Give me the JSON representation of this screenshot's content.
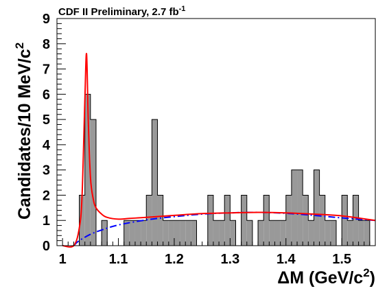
{
  "chart_data": {
    "type": "histogram",
    "title": "CDF II Preliminary, 2.7 fb",
    "title_superscript": "-1",
    "xlabel": "ΔM  (GeV/c",
    "xlabel_superscript": "2",
    "xlabel_suffix": ")",
    "ylabel": "Candidates/10 MeV/c",
    "ylabel_superscript": "2",
    "xlim": [
      0.99,
      1.56
    ],
    "ylim": [
      0,
      9
    ],
    "x_ticks": [
      "1",
      "1.1",
      "1.2",
      "1.3",
      "1.4",
      "1.5"
    ],
    "x_tick_values": [
      1.0,
      1.1,
      1.2,
      1.3,
      1.4,
      1.5
    ],
    "y_ticks": [
      "0",
      "1",
      "2",
      "3",
      "4",
      "5",
      "6",
      "7",
      "8",
      "9"
    ],
    "y_tick_values": [
      0,
      1,
      2,
      3,
      4,
      5,
      6,
      7,
      8,
      9
    ],
    "bin_width": 0.01,
    "bins_start": 1.02,
    "bin_counts": [
      0,
      2,
      6,
      5,
      0,
      1,
      0,
      0,
      0,
      1,
      1,
      1,
      1,
      2,
      5,
      2,
      1,
      1,
      1,
      1,
      1,
      1,
      0,
      0,
      2,
      1,
      1,
      2,
      1,
      0,
      2,
      1,
      0,
      1,
      2,
      1,
      1,
      1,
      2,
      3,
      3,
      2,
      1,
      3,
      2,
      1,
      1,
      0,
      2,
      1,
      2,
      1,
      1
    ],
    "signal_plus_background": {
      "x": [
        1.0,
        1.02,
        1.03,
        1.035,
        1.04,
        1.043,
        1.046,
        1.05,
        1.055,
        1.06,
        1.07,
        1.08,
        1.1,
        1.12,
        1.15,
        1.2,
        1.25,
        1.3,
        1.35,
        1.4,
        1.45,
        1.5,
        1.56
      ],
      "y": [
        0,
        0,
        0.7,
        2.0,
        5.8,
        7.6,
        5.0,
        2.7,
        1.85,
        1.5,
        1.25,
        1.12,
        1.05,
        1.08,
        1.12,
        1.2,
        1.27,
        1.3,
        1.32,
        1.3,
        1.25,
        1.18,
        1.0
      ],
      "color": "#ff0000"
    },
    "background": {
      "x": [
        1.02,
        1.03,
        1.05,
        1.07,
        1.1,
        1.15,
        1.2,
        1.25,
        1.3,
        1.35,
        1.4,
        1.45,
        1.5,
        1.56
      ],
      "y": [
        0,
        0.2,
        0.45,
        0.62,
        0.82,
        1.02,
        1.15,
        1.25,
        1.3,
        1.32,
        1.28,
        1.2,
        1.1,
        1.0
      ],
      "color": "#0000ff"
    },
    "fill_color": "#999999",
    "grid": false
  }
}
